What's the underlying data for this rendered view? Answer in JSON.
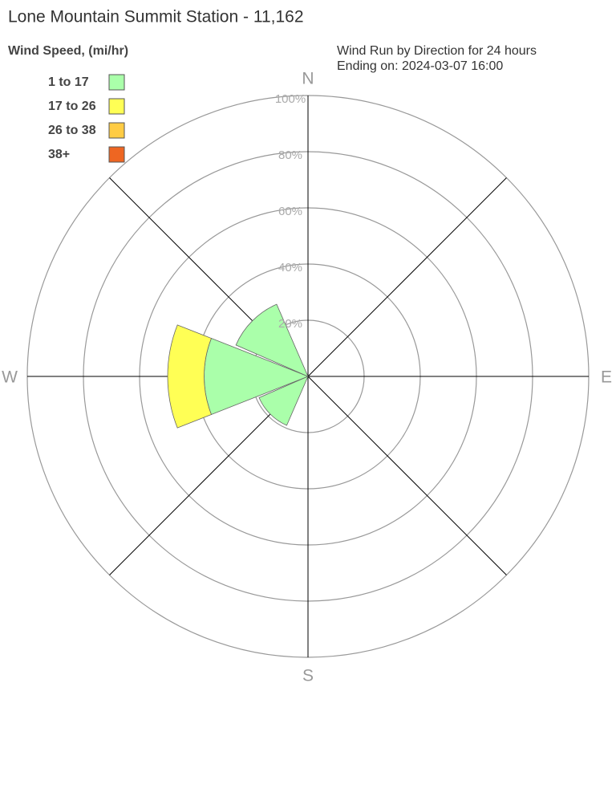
{
  "chart_data": {
    "type": "windrose",
    "title": "Lone Mountain Summit Station - 11,162",
    "legend_title": "Wind Speed, (mi/hr)",
    "subtitle": [
      "Wind Run by Direction for 24 hours",
      "Ending on: 2024-03-07 16:00"
    ],
    "categories": [
      "N",
      null,
      "E",
      null,
      "S",
      null,
      "W",
      null
    ],
    "series": [
      {
        "name": "1 to 17",
        "color": "#aaffaa",
        "values": [
          0,
          0,
          0,
          0,
          0,
          19,
          37,
          28
        ]
      },
      {
        "name": "17 to 26",
        "color": "#ffff55",
        "values": [
          0,
          0,
          0,
          0,
          0,
          0,
          13,
          0
        ]
      },
      {
        "name": "26 to 38",
        "color": "#ffcc44",
        "values": [
          0,
          0,
          0,
          0,
          0,
          0,
          0,
          0
        ]
      },
      {
        "name": "38+",
        "color": "#ee6622",
        "values": [
          0,
          0,
          0,
          0,
          0,
          0,
          0,
          0
        ]
      }
    ],
    "rlim": [
      0,
      100
    ],
    "rticks": [
      {
        "value": 20,
        "label": "20%"
      },
      {
        "value": 40,
        "label": "40%"
      },
      {
        "value": 60,
        "label": "60%"
      },
      {
        "value": 80,
        "label": "80%"
      },
      {
        "value": 100,
        "label": "100%"
      }
    ],
    "grid": true
  }
}
